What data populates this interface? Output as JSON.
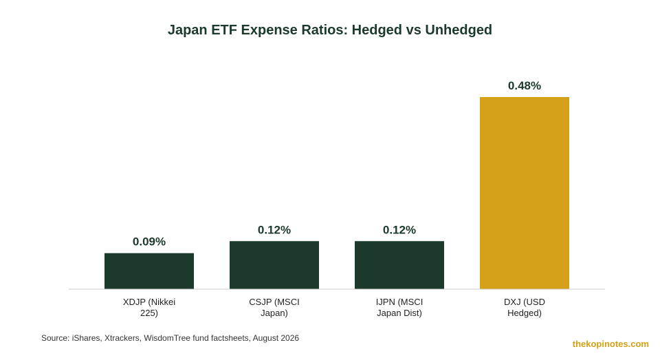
{
  "chart_data": {
    "type": "bar",
    "title": "Japan ETF Expense Ratios: Hedged vs Unhedged",
    "categories": [
      [
        "XDJP (Nikkei",
        "225)"
      ],
      [
        "CSJP (MSCI",
        "Japan)"
      ],
      [
        "IJPN (MSCI",
        "Japan Dist)"
      ],
      [
        "DXJ (USD",
        "Hedged)"
      ]
    ],
    "values": [
      0.09,
      0.12,
      0.12,
      0.48
    ],
    "value_labels": [
      "0.09%",
      "0.12%",
      "0.12%",
      "0.48%"
    ],
    "ylim": [
      0,
      0.48
    ],
    "grid": false,
    "xlabel": "",
    "ylabel": "",
    "colors": {
      "unhedged": "#1b3a2c",
      "hedged": "#d4a017",
      "baseline": "#cccccc",
      "title": "#1b3a2c"
    },
    "bar_colors": [
      "#1b3a2c",
      "#1b3a2c",
      "#1b3a2c",
      "#d4a017"
    ]
  },
  "footer": {
    "source": "Source: iShares, Xtrackers, WisdomTree fund factsheets, August 2026",
    "watermark": "thekopinotes.com"
  }
}
